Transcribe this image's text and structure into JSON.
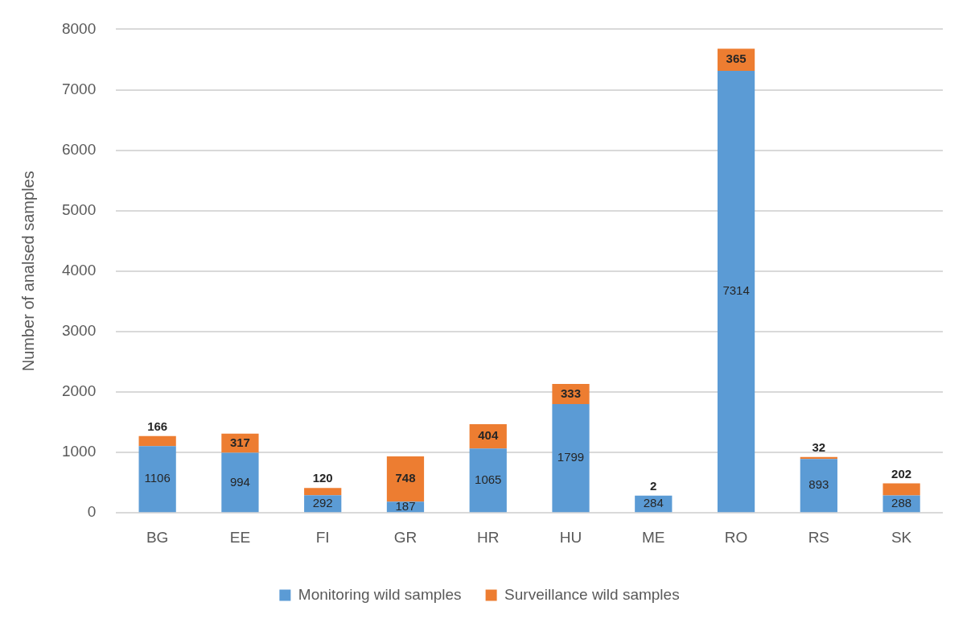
{
  "chart_data": {
    "type": "bar",
    "stacked": true,
    "ylabel": "Number of analsed samples",
    "categories": [
      "BG",
      "EE",
      "FI",
      "GR",
      "HR",
      "HU",
      "ME",
      "RO",
      "RS",
      "SK"
    ],
    "series": [
      {
        "name": "Monitoring wild samples",
        "color": "#5b9bd5",
        "values": [
          1106,
          994,
          292,
          187,
          1065,
          1799,
          284,
          7314,
          893,
          288
        ]
      },
      {
        "name": "Surveillance wild samples",
        "color": "#ed7d31",
        "values": [
          166,
          317,
          120,
          748,
          404,
          333,
          2,
          365,
          32,
          202
        ]
      }
    ],
    "ylim": [
      0,
      8000
    ],
    "yticks": [
      0,
      1000,
      2000,
      3000,
      4000,
      5000,
      6000,
      7000,
      8000
    ],
    "grid": "y",
    "legend": "bottom",
    "data_labels": true
  }
}
